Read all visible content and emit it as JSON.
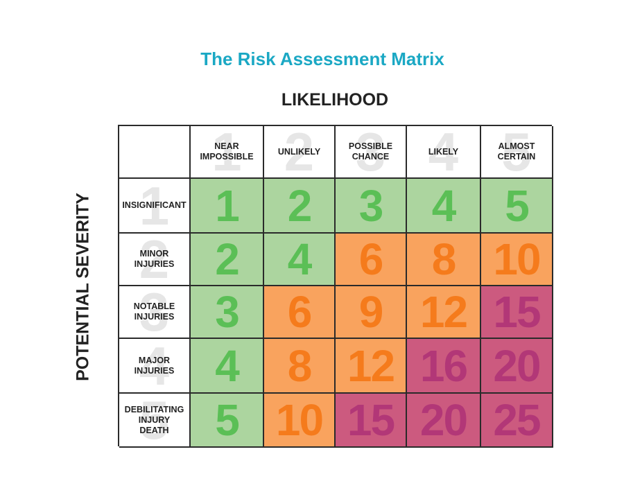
{
  "title": "The Risk Assessment Matrix",
  "x_axis_label": "LIKELIHOOD",
  "y_axis_label": "POTENTIAL SEVERITY",
  "likelihood": [
    {
      "rank": "1",
      "label": "NEAR\nIMPOSSIBLE"
    },
    {
      "rank": "2",
      "label": "UNLIKELY"
    },
    {
      "rank": "3",
      "label": "POSSIBLE\nCHANCE"
    },
    {
      "rank": "4",
      "label": "LIKELY"
    },
    {
      "rank": "5",
      "label": "ALMOST\nCERTAIN"
    }
  ],
  "severity": [
    {
      "rank": "1",
      "label": "INSIGNIFICANT"
    },
    {
      "rank": "2",
      "label": "MINOR\nINJURIES"
    },
    {
      "rank": "3",
      "label": "NOTABLE\nINJURIES"
    },
    {
      "rank": "4",
      "label": "MAJOR\nINJURIES"
    },
    {
      "rank": "5",
      "label": "DEBILITATING\nINJURY\nDEATH"
    }
  ],
  "matrix": [
    [
      {
        "value": "1",
        "level": "low"
      },
      {
        "value": "2",
        "level": "low"
      },
      {
        "value": "3",
        "level": "low"
      },
      {
        "value": "4",
        "level": "low"
      },
      {
        "value": "5",
        "level": "low"
      }
    ],
    [
      {
        "value": "2",
        "level": "low"
      },
      {
        "value": "4",
        "level": "low"
      },
      {
        "value": "6",
        "level": "med"
      },
      {
        "value": "8",
        "level": "med"
      },
      {
        "value": "10",
        "level": "med"
      }
    ],
    [
      {
        "value": "3",
        "level": "low"
      },
      {
        "value": "6",
        "level": "med"
      },
      {
        "value": "9",
        "level": "med"
      },
      {
        "value": "12",
        "level": "med"
      },
      {
        "value": "15",
        "level": "high"
      }
    ],
    [
      {
        "value": "4",
        "level": "low"
      },
      {
        "value": "8",
        "level": "med"
      },
      {
        "value": "12",
        "level": "med"
      },
      {
        "value": "16",
        "level": "high"
      },
      {
        "value": "20",
        "level": "high"
      }
    ],
    [
      {
        "value": "5",
        "level": "low"
      },
      {
        "value": "10",
        "level": "med"
      },
      {
        "value": "15",
        "level": "high"
      },
      {
        "value": "20",
        "level": "high"
      },
      {
        "value": "25",
        "level": "high"
      }
    ]
  ],
  "colors": {
    "low_bg": "#acd59f",
    "low_text": "#5bbf56",
    "med_bg": "#f9a35e",
    "med_text": "#f57b1c",
    "high_bg": "#cc5a7f",
    "high_text": "#b23777",
    "title": "#1ba8c4"
  }
}
